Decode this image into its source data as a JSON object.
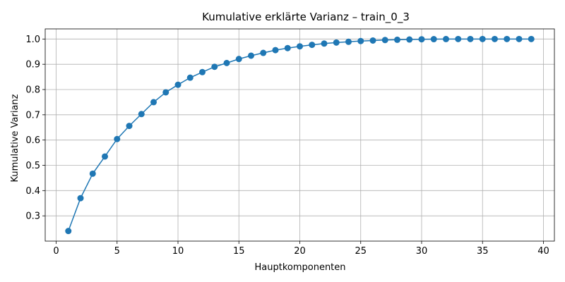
{
  "chart_data": {
    "type": "line",
    "title": "Kumulative erklärte Varianz – train_0_3",
    "xlabel": "Hauptkomponenten",
    "ylabel": "Kumulative Varianz",
    "xlim": [
      -0.9,
      40.9
    ],
    "ylim": [
      0.2,
      1.04
    ],
    "xticks": [
      0,
      5,
      10,
      15,
      20,
      25,
      30,
      35,
      40
    ],
    "yticks": [
      0.3,
      0.4,
      0.5,
      0.6,
      0.7,
      0.8,
      0.9,
      1.0
    ],
    "ytick_labels": [
      "0.3",
      "0.4",
      "0.5",
      "0.6",
      "0.7",
      "0.8",
      "0.9",
      "1.0"
    ],
    "grid": true,
    "line_color": "#1f77b4",
    "marker": "circle",
    "x": [
      1,
      2,
      3,
      4,
      5,
      6,
      7,
      8,
      9,
      10,
      11,
      12,
      13,
      14,
      15,
      16,
      17,
      18,
      19,
      20,
      21,
      22,
      23,
      24,
      25,
      26,
      27,
      28,
      29,
      30,
      31,
      32,
      33,
      34,
      35,
      36,
      37,
      38,
      39
    ],
    "values": [
      0.24,
      0.37,
      0.467,
      0.535,
      0.604,
      0.656,
      0.703,
      0.75,
      0.789,
      0.819,
      0.847,
      0.869,
      0.89,
      0.905,
      0.921,
      0.934,
      0.945,
      0.956,
      0.964,
      0.971,
      0.977,
      0.982,
      0.986,
      0.989,
      0.992,
      0.994,
      0.996,
      0.997,
      0.998,
      0.999,
      0.9995,
      0.9998,
      1.0,
      1.0,
      1.0,
      1.0,
      1.0,
      1.0,
      1.0
    ]
  }
}
